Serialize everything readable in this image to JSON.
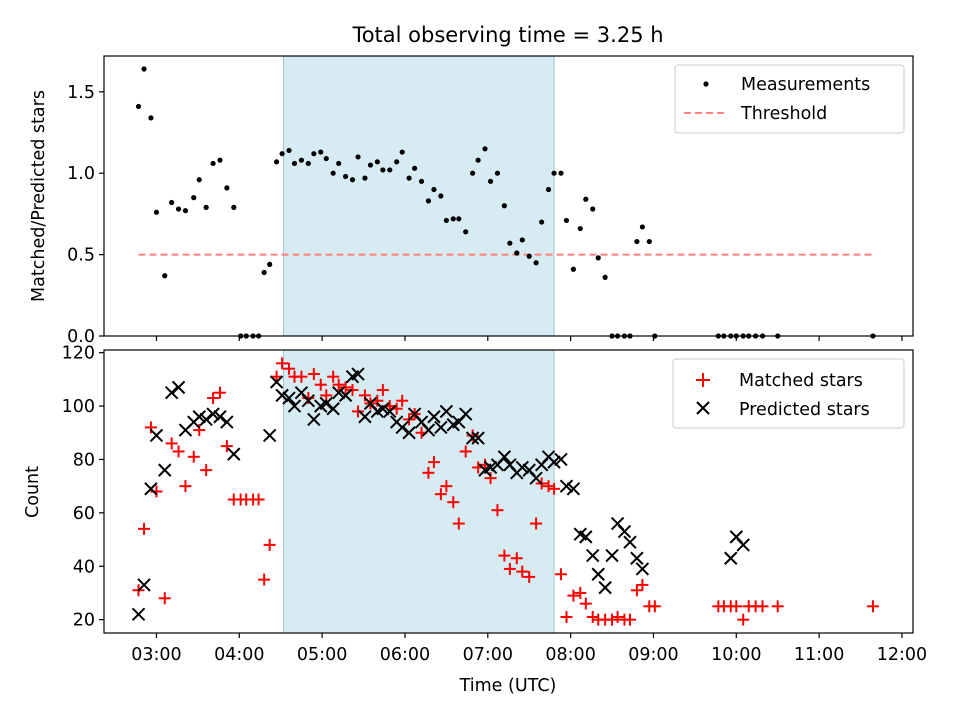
{
  "chart_data": [
    {
      "type": "scatter",
      "title": "Total observing time = 3.25 h",
      "ylabel": "Matched/Predicted stars",
      "xlabel": "",
      "xlim": [
        "02:22",
        "12:08"
      ],
      "ylim": [
        0,
        1.72
      ],
      "yticks": [
        0.0,
        0.5,
        1.0,
        1.5
      ],
      "ytick_labels": [
        "0.0",
        "0.5",
        "1.0",
        "1.5"
      ],
      "shaded_span": {
        "from": "04:32",
        "to": "07:48",
        "color": "#add8e6"
      },
      "legend_position": "top-right",
      "series": [
        {
          "name": "Measurements",
          "marker": "dot",
          "color": "#000000",
          "x": [
            "02:47",
            "02:51",
            "02:56",
            "03:00",
            "03:06",
            "03:11",
            "03:16",
            "03:21",
            "03:27",
            "03:31",
            "03:36",
            "03:41",
            "03:46",
            "03:51",
            "03:56",
            "04:01",
            "04:05",
            "04:10",
            "04:14",
            "04:18",
            "04:22",
            "04:27",
            "04:31",
            "04:36",
            "04:40",
            "04:45",
            "04:50",
            "04:54",
            "04:59",
            "05:03",
            "05:08",
            "05:12",
            "05:17",
            "05:22",
            "05:26",
            "05:31",
            "05:35",
            "05:40",
            "05:44",
            "05:49",
            "05:54",
            "05:58",
            "06:03",
            "06:07",
            "06:12",
            "06:17",
            "06:21",
            "06:26",
            "06:30",
            "06:35",
            "06:39",
            "06:44",
            "06:49",
            "06:53",
            "06:58",
            "07:02",
            "07:07",
            "07:12",
            "07:16",
            "07:21",
            "07:25",
            "07:30",
            "07:35",
            "07:39",
            "07:44",
            "07:48",
            "07:53",
            "07:57",
            "08:02",
            "08:07",
            "08:11",
            "08:16",
            "08:20",
            "08:25",
            "08:30",
            "08:34",
            "08:39",
            "08:43",
            "08:48",
            "08:52",
            "08:57",
            "09:01",
            "09:47",
            "09:51",
            "09:56",
            "10:00",
            "10:05",
            "10:09",
            "10:14",
            "10:19",
            "10:30",
            "11:39"
          ],
          "y": [
            1.41,
            1.64,
            1.34,
            0.76,
            0.37,
            0.82,
            0.78,
            0.77,
            0.85,
            0.96,
            0.79,
            1.06,
            1.08,
            0.91,
            0.79,
            0.0,
            0.0,
            0.0,
            0.0,
            0.39,
            0.44,
            1.07,
            1.12,
            1.14,
            1.06,
            1.08,
            1.06,
            1.12,
            1.13,
            1.09,
            1.0,
            1.06,
            0.98,
            0.96,
            1.1,
            0.97,
            1.05,
            1.07,
            1.02,
            1.02,
            1.07,
            1.13,
            0.97,
            1.03,
            0.95,
            0.83,
            0.9,
            0.86,
            0.71,
            0.72,
            0.72,
            0.64,
            1.0,
            1.08,
            1.15,
            0.95,
            1.0,
            0.8,
            0.57,
            0.51,
            0.59,
            0.49,
            0.45,
            0.7,
            0.9,
            1.0,
            1.0,
            0.71,
            0.41,
            0.66,
            0.84,
            0.78,
            0.48,
            0.36,
            0.0,
            0.0,
            0.0,
            0.0,
            0.58,
            0.67,
            0.58,
            0.0,
            0.0,
            0.0,
            0.0,
            0.0,
            0.0,
            0.0,
            0.0,
            0.0,
            0.0,
            0.0
          ]
        },
        {
          "name": "Threshold",
          "type": "line",
          "style": "dashed",
          "color": "#ff8080",
          "x": [
            "02:47",
            "11:39"
          ],
          "y": [
            0.5,
            0.5
          ]
        }
      ]
    },
    {
      "type": "scatter",
      "title": "",
      "ylabel": "Count",
      "xlabel": "Time (UTC)",
      "xlim": [
        "02:22",
        "12:08"
      ],
      "ylim": [
        15,
        121
      ],
      "yticks": [
        20,
        40,
        60,
        80,
        100,
        120
      ],
      "ytick_labels": [
        "20",
        "40",
        "60",
        "80",
        "100",
        "120"
      ],
      "xticks": [
        "03:00",
        "04:00",
        "05:00",
        "06:00",
        "07:00",
        "08:00",
        "09:00",
        "10:00",
        "11:00",
        "12:00"
      ],
      "xtick_labels": [
        "03:00",
        "04:00",
        "05:00",
        "06:00",
        "07:00",
        "08:00",
        "09:00",
        "10:00",
        "11:00",
        "12:00"
      ],
      "shaded_span": {
        "from": "04:32",
        "to": "07:48",
        "color": "#add8e6"
      },
      "legend_position": "top-right",
      "series": [
        {
          "name": "Matched stars",
          "marker": "plus",
          "color": "#ff0000",
          "x": [
            "02:47",
            "02:51",
            "02:56",
            "03:00",
            "03:06",
            "03:11",
            "03:16",
            "03:21",
            "03:27",
            "03:31",
            "03:36",
            "03:41",
            "03:46",
            "03:51",
            "03:56",
            "04:01",
            "04:05",
            "04:10",
            "04:14",
            "04:18",
            "04:22",
            "04:27",
            "04:31",
            "04:36",
            "04:40",
            "04:45",
            "04:50",
            "04:54",
            "04:59",
            "05:03",
            "05:08",
            "05:12",
            "05:17",
            "05:22",
            "05:26",
            "05:31",
            "05:35",
            "05:40",
            "05:44",
            "05:49",
            "05:54",
            "05:58",
            "06:03",
            "06:07",
            "06:12",
            "06:17",
            "06:21",
            "06:26",
            "06:30",
            "06:35",
            "06:39",
            "06:44",
            "06:49",
            "06:53",
            "06:58",
            "07:02",
            "07:07",
            "07:12",
            "07:16",
            "07:21",
            "07:25",
            "07:30",
            "07:35",
            "07:39",
            "07:44",
            "07:48",
            "07:53",
            "07:57",
            "08:02",
            "08:07",
            "08:11",
            "08:16",
            "08:20",
            "08:25",
            "08:30",
            "08:34",
            "08:39",
            "08:43",
            "08:48",
            "08:52",
            "08:57",
            "09:01",
            "09:47",
            "09:51",
            "09:56",
            "10:00",
            "10:05",
            "10:09",
            "10:14",
            "10:19",
            "10:30",
            "11:39"
          ],
          "y": [
            31,
            54,
            92,
            68,
            28,
            86,
            83,
            70,
            81,
            91,
            76,
            103,
            105,
            85,
            65,
            65,
            65,
            65,
            65,
            35,
            48,
            111,
            116,
            114,
            111,
            111,
            103,
            112,
            108,
            104,
            111,
            108,
            107,
            106,
            98,
            104,
            101,
            102,
            106,
            100,
            99,
            102,
            95,
            97,
            90,
            75,
            79,
            67,
            70,
            64,
            56,
            83,
            89,
            77,
            78,
            73,
            61,
            44,
            39,
            43,
            38,
            36,
            56,
            71,
            70,
            69,
            37,
            21,
            29,
            30,
            26,
            21,
            20,
            20,
            20,
            21,
            20,
            20,
            31,
            33,
            25,
            25,
            25,
            25,
            25,
            25,
            20,
            25,
            25,
            25,
            25,
            25
          ]
        },
        {
          "name": "Predicted stars",
          "marker": "x",
          "color": "#000000",
          "x": [
            "02:47",
            "02:51",
            "02:56",
            "03:00",
            "03:06",
            "03:11",
            "03:16",
            "03:21",
            "03:27",
            "03:31",
            "03:36",
            "03:41",
            "03:46",
            "03:51",
            "03:56",
            "04:22",
            "04:27",
            "04:31",
            "04:36",
            "04:40",
            "04:45",
            "04:50",
            "04:54",
            "04:59",
            "05:03",
            "05:08",
            "05:12",
            "05:17",
            "05:22",
            "05:26",
            "05:31",
            "05:35",
            "05:40",
            "05:44",
            "05:49",
            "05:54",
            "05:58",
            "06:03",
            "06:07",
            "06:12",
            "06:17",
            "06:21",
            "06:26",
            "06:30",
            "06:35",
            "06:39",
            "06:44",
            "06:49",
            "06:53",
            "06:58",
            "07:02",
            "07:07",
            "07:12",
            "07:16",
            "07:21",
            "07:25",
            "07:30",
            "07:35",
            "07:39",
            "07:44",
            "07:48",
            "07:53",
            "07:57",
            "08:02",
            "08:07",
            "08:11",
            "08:16",
            "08:20",
            "08:25",
            "08:30",
            "08:34",
            "08:39",
            "08:43",
            "08:48",
            "08:52",
            "09:56",
            "10:00",
            "10:05"
          ],
          "y": [
            22,
            33,
            69,
            89,
            76,
            105,
            107,
            91,
            94,
            96,
            95,
            97,
            96,
            94,
            82,
            89,
            109,
            104,
            103,
            100,
            105,
            102,
            95,
            100,
            101,
            99,
            105,
            104,
            111,
            112,
            96,
            101,
            98,
            99,
            98,
            94,
            92,
            90,
            97,
            94,
            91,
            96,
            92,
            98,
            93,
            94,
            97,
            88,
            88,
            76,
            77,
            78,
            81,
            78,
            75,
            77,
            76,
            73,
            78,
            81,
            79,
            80,
            70,
            69,
            52,
            51,
            44,
            37,
            32,
            44,
            56,
            53,
            49,
            43,
            39,
            43,
            51,
            48
          ]
        }
      ]
    }
  ]
}
